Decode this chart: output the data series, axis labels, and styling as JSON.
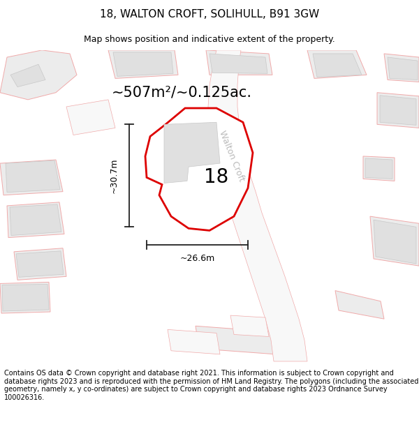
{
  "title": "18, WALTON CROFT, SOLIHULL, B91 3GW",
  "subtitle": "Map shows position and indicative extent of the property.",
  "footer": "Contains OS data © Crown copyright and database right 2021. This information is subject to Crown copyright and database rights 2023 and is reproduced with the permission of HM Land Registry. The polygons (including the associated geometry, namely x, y co-ordinates) are subject to Crown copyright and database rights 2023 Ordnance Survey 100026316.",
  "area_label": "~507m²/~0.125ac.",
  "number_label": "18",
  "dim_width": "~26.6m",
  "dim_height": "~30.7m",
  "street_label": "Walton Croft",
  "bg_color": "#f9f9f9",
  "plot_color": "#ffffff",
  "plot_edge_color": "#dd0000",
  "building_color": "#e0e0e0",
  "building_edge": "#c8c8c8",
  "other_plot_color": "#ececec",
  "other_plot_edge": "#f0aaaa",
  "road_color": "#f8f8f8",
  "road_edge": "#f0aaaa",
  "dim_line_color": "#222222",
  "street_label_color": "#bbbbbb",
  "title_fontsize": 11,
  "subtitle_fontsize": 9,
  "footer_fontsize": 7,
  "area_fontsize": 15,
  "number_fontsize": 20,
  "street_fontsize": 9
}
